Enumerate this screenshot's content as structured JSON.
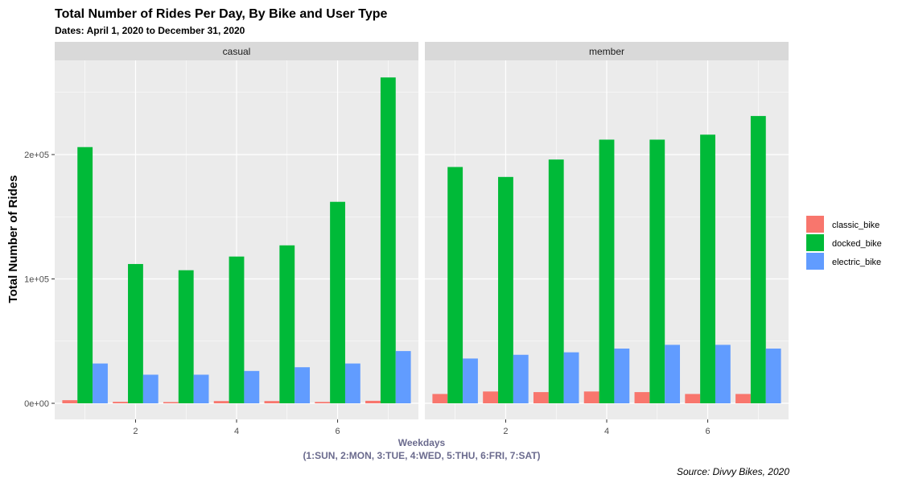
{
  "colors": {
    "classic_bike": "#F8766D",
    "docked_bike": "#00BA38",
    "electric_bike": "#619CFF",
    "panel_bg": "#EBEBEB",
    "strip_bg": "#D9D9D9",
    "grid": "#FFFFFF"
  },
  "chart_data": {
    "type": "bar",
    "title": "Total Number of Rides Per Day, By Bike and User Type",
    "subtitle": "Dates: April 1, 2020 to December 31, 2020",
    "ylabel": "Total Number of Rides",
    "xlabel_line1": "Weekdays",
    "xlabel_line2": "(1:SUN, 2:MON, 3:TUE, 4:WED, 5:THU, 6:FRI, 7:SAT)",
    "caption": "Source: Divvy Bikes, 2020",
    "x": [
      1,
      2,
      3,
      4,
      5,
      6,
      7
    ],
    "xticks": [
      2,
      4,
      6
    ],
    "xtick_labels": [
      "2",
      "4",
      "6"
    ],
    "ylim": [
      0,
      275000
    ],
    "yticks": [
      0,
      100000,
      200000
    ],
    "ytick_labels": [
      "0e+00",
      "1e+05",
      "2e+05"
    ],
    "legend_placement": "right",
    "grid": true,
    "series_names": [
      "classic_bike",
      "docked_bike",
      "electric_bike"
    ],
    "panels": [
      {
        "label": "casual",
        "series": [
          {
            "name": "classic_bike",
            "values": [
              2500,
              1200,
              1000,
              1800,
              1800,
              1100,
              2000
            ]
          },
          {
            "name": "docked_bike",
            "values": [
              206000,
              112000,
              107000,
              118000,
              127000,
              162000,
              262000
            ]
          },
          {
            "name": "electric_bike",
            "values": [
              32000,
              23000,
              23000,
              26000,
              29000,
              32000,
              42000
            ]
          }
        ]
      },
      {
        "label": "member",
        "series": [
          {
            "name": "classic_bike",
            "values": [
              7500,
              9500,
              9000,
              9500,
              9000,
              7500,
              7500
            ]
          },
          {
            "name": "docked_bike",
            "values": [
              190000,
              182000,
              196000,
              212000,
              212000,
              216000,
              231000
            ]
          },
          {
            "name": "electric_bike",
            "values": [
              36000,
              39000,
              41000,
              44000,
              47000,
              47000,
              44000
            ]
          }
        ]
      }
    ]
  }
}
